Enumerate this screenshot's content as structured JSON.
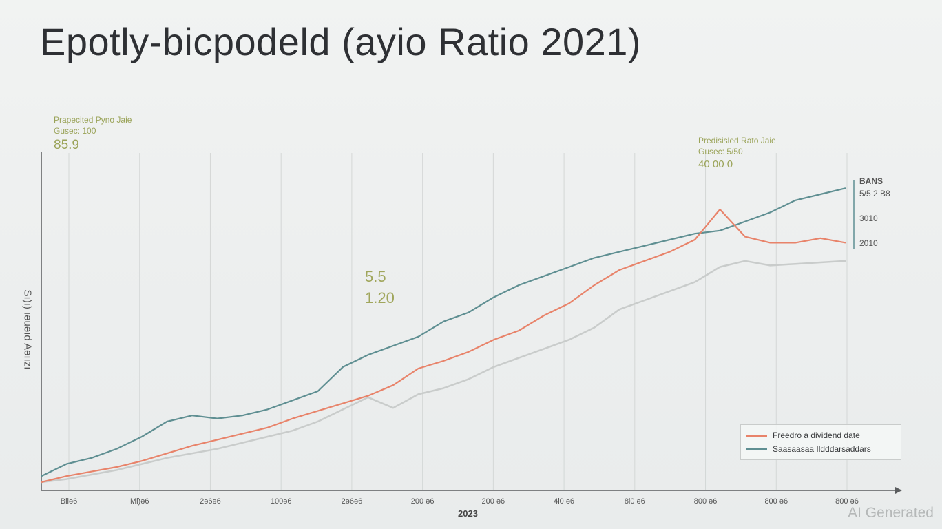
{
  "title": "Epotly-bicpodeld (ayio Ratio 2021)",
  "watermark": "AI Generated",
  "colors": {
    "series_red": "#e8836a",
    "series_teal": "#5f8f92",
    "series_gray": "#c9cccb",
    "annotation": "#9aa358"
  },
  "chart_data": {
    "type": "line",
    "xlabel": "2023",
    "ylabel": "Sı)ı) ıəuəıd Aəıızı",
    "x_ticks": [
      "Bllə6",
      "Ml)ə6",
      "2ə6ə6",
      "100ə6",
      "2ə6ə6",
      "200 ə6",
      "200 ə6",
      "4l0 ə6",
      "8l0 ə6",
      "800 ə6",
      "800 ə6",
      "800 ə6"
    ],
    "annotations": [
      {
        "label": "Prapecited Pyno Jaie",
        "sub": "Gusec: 100",
        "value": "85.9"
      },
      {
        "label": "Predisisled Rato Jaie",
        "sub": "Gusec: 5/50",
        "value": "40 00 0"
      },
      {
        "label": "5.5",
        "value": "1.20"
      }
    ],
    "right_labels": [
      "BANS",
      "5/5 2 B8",
      "3010",
      "2010"
    ],
    "legend": [
      {
        "name": "Freedro a dividend date",
        "color": "#e8836a"
      },
      {
        "name": "Saasaasaa Ildddarsaddars",
        "color": "#5f8f92"
      }
    ],
    "grid": true,
    "series": [
      {
        "name": "Freedro a dividend date",
        "color": "#e8836a",
        "values": [
          0.0,
          2.0,
          3.5,
          5.0,
          7.0,
          9.5,
          12.0,
          14.0,
          16.0,
          18.0,
          21.0,
          23.5,
          26.0,
          28.5,
          32.0,
          37.5,
          40.0,
          43.0,
          47.0,
          50.0,
          55.0,
          59.0,
          65.0,
          70.0,
          73.0,
          76.0,
          80.0,
          90.0,
          81.0,
          79.0,
          79.0,
          80.5,
          79.0
        ]
      },
      {
        "name": "Saasaasaa Ildddarsaddars",
        "color": "#5f8f92",
        "values": [
          2.0,
          6.0,
          8.0,
          11.0,
          15.0,
          20.0,
          22.0,
          21.0,
          22.0,
          24.0,
          27.0,
          30.0,
          38.0,
          42.0,
          45.0,
          48.0,
          53.0,
          56.0,
          61.0,
          65.0,
          68.0,
          71.0,
          74.0,
          76.0,
          78.0,
          80.0,
          82.0,
          83.0,
          86.0,
          89.0,
          93.0,
          95.0,
          97.0
        ]
      },
      {
        "name": "",
        "color": "#c9cccb",
        "values": [
          0.0,
          1.0,
          2.5,
          4.0,
          6.0,
          8.0,
          9.5,
          11.0,
          13.0,
          15.0,
          17.0,
          20.0,
          24.0,
          28.0,
          24.5,
          29.0,
          31.0,
          34.0,
          38.0,
          41.0,
          44.0,
          47.0,
          51.0,
          57.0,
          60.0,
          63.0,
          66.0,
          71.0,
          73.0,
          71.5,
          72.0,
          72.5,
          73.0
        ]
      }
    ]
  }
}
